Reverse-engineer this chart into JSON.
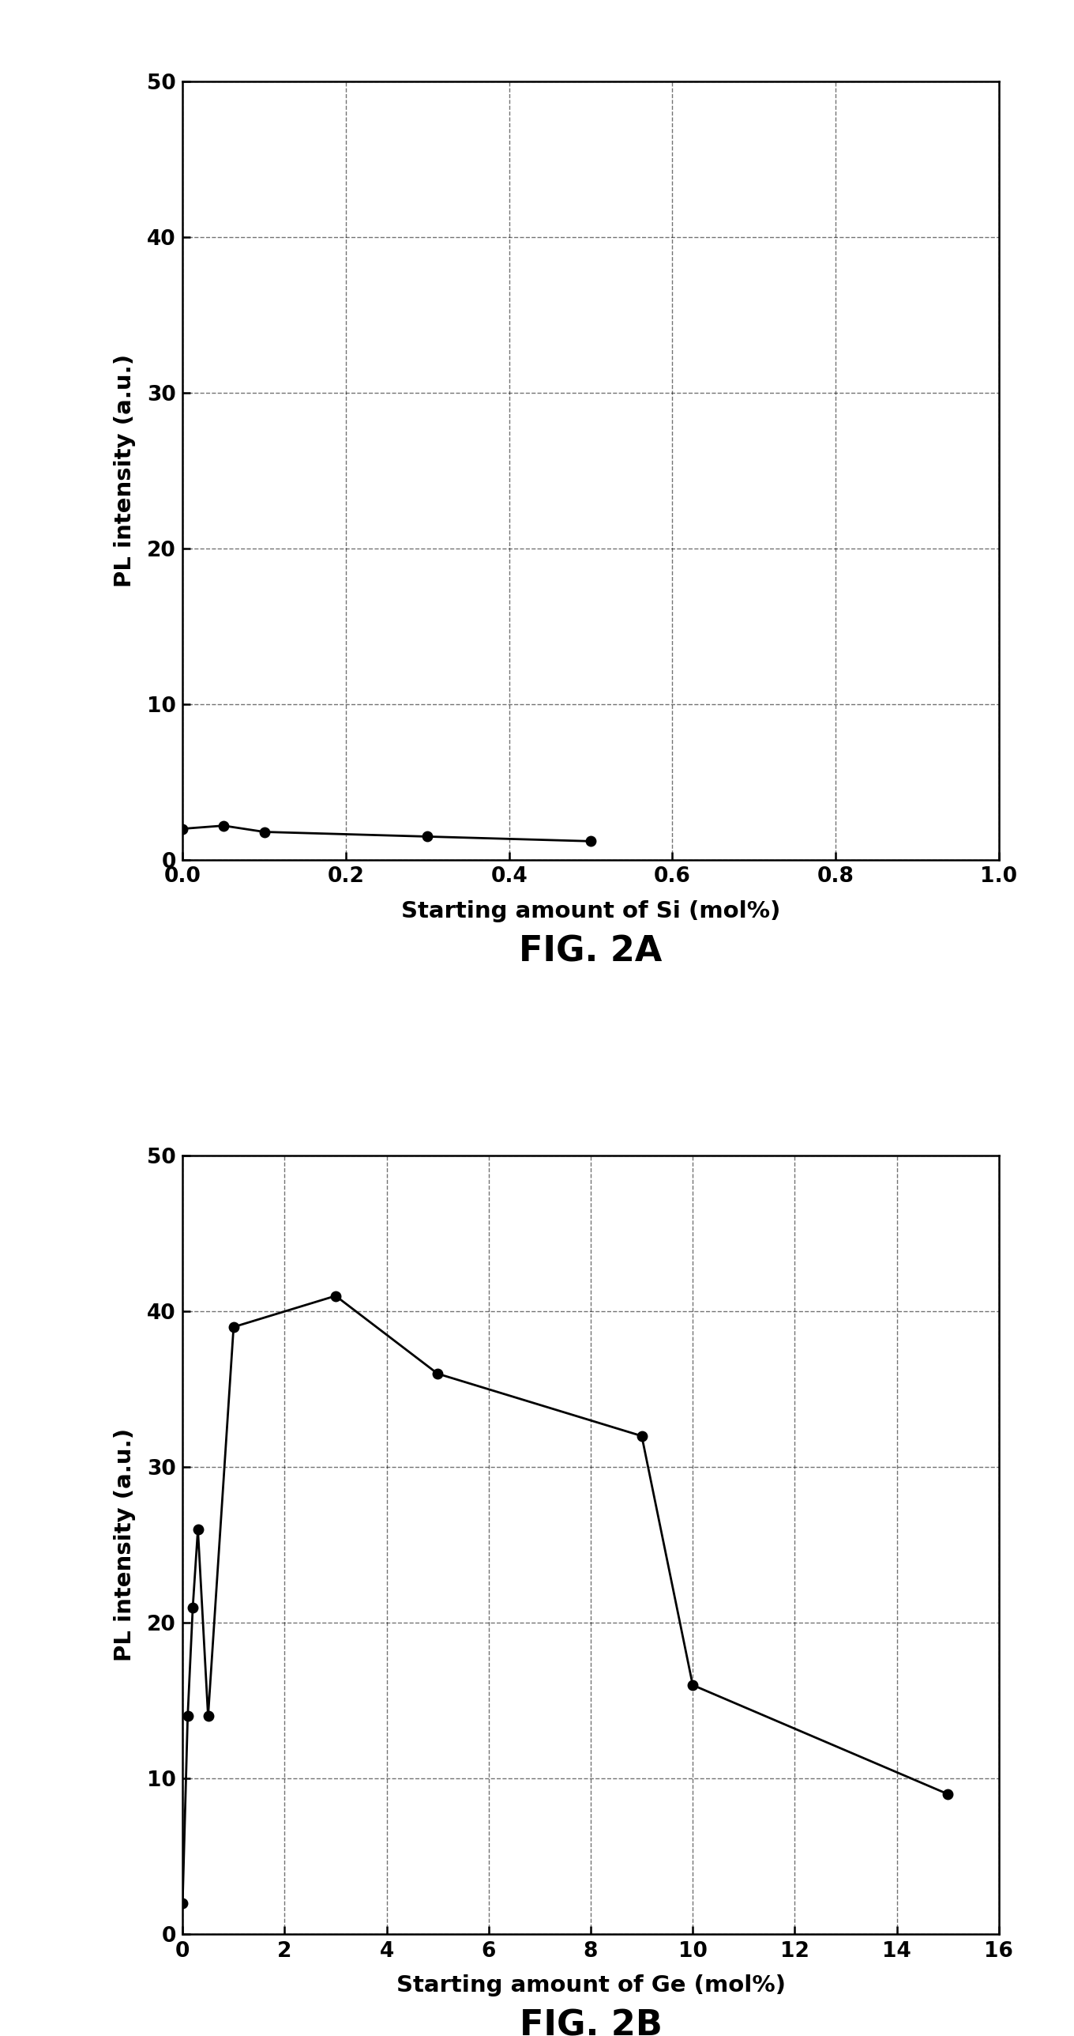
{
  "fig2a": {
    "x": [
      0,
      0.05,
      0.1,
      0.3,
      0.5
    ],
    "y": [
      2.0,
      2.2,
      1.8,
      1.5,
      1.2
    ],
    "xlabel": "Starting amount of Si (mol%)",
    "ylabel": "PL intensity (a.u.)",
    "caption": "FIG. 2A",
    "xlim": [
      0,
      1
    ],
    "ylim": [
      0,
      50
    ],
    "xticks": [
      0,
      0.2,
      0.4,
      0.6,
      0.8,
      1.0
    ],
    "yticks": [
      0,
      10,
      20,
      30,
      40,
      50
    ]
  },
  "fig2b": {
    "x": [
      0,
      0.1,
      0.2,
      0.3,
      0.5,
      1.0,
      3.0,
      5.0,
      9.0,
      10.0,
      15.0
    ],
    "y": [
      2.0,
      14.0,
      21.0,
      26.0,
      14.0,
      39.0,
      41.0,
      36.0,
      32.0,
      16.0,
      9.0
    ],
    "xlabel": "Starting amount of Ge (mol%)",
    "ylabel": "PL intensity (a.u.)",
    "caption": "FIG. 2B",
    "xlim": [
      0,
      16
    ],
    "ylim": [
      0,
      50
    ],
    "xticks": [
      0,
      2,
      4,
      6,
      8,
      10,
      12,
      14,
      16
    ],
    "yticks": [
      0,
      10,
      20,
      30,
      40,
      50
    ]
  },
  "background_color": "#ffffff",
  "line_color": "#000000",
  "marker_color": "#000000",
  "marker_size": 9,
  "line_width": 2.0,
  "tick_fontsize": 19,
  "label_fontsize": 21,
  "caption_fontsize": 32
}
